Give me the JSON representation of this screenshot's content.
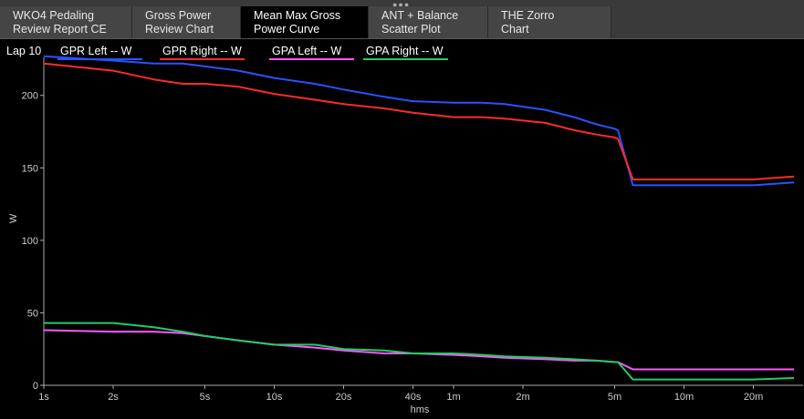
{
  "tabs": [
    {
      "line1": "WKO4 Pedaling",
      "line2": "Review Report CE",
      "active": false
    },
    {
      "line1": "Gross Power",
      "line2": "Review Chart",
      "active": false
    },
    {
      "line1": "Mean Max Gross",
      "line2": "Power Curve",
      "active": true
    },
    {
      "line1": "ANT + Balance",
      "line2": "Scatter Plot",
      "active": false
    },
    {
      "line1": "THE Zorro",
      "line2": "Chart",
      "active": false
    }
  ],
  "chart_data": {
    "type": "line",
    "lap_label": "Lap 10",
    "xlabel": "hms",
    "ylabel": "W",
    "x_scale": "log",
    "x_unit": "seconds",
    "xlim": [
      1,
      1800
    ],
    "ylim": [
      0,
      235
    ],
    "yticks": [
      0,
      50,
      100,
      150,
      200
    ],
    "xticks": [
      {
        "s": 1,
        "label": "1s"
      },
      {
        "s": 2,
        "label": "2s"
      },
      {
        "s": 5,
        "label": "5s"
      },
      {
        "s": 10,
        "label": "10s"
      },
      {
        "s": 20,
        "label": "20s"
      },
      {
        "s": 40,
        "label": "40s"
      },
      {
        "s": 60,
        "label": "1m"
      },
      {
        "s": 120,
        "label": "2m"
      },
      {
        "s": 300,
        "label": "5m"
      },
      {
        "s": 600,
        "label": "10m"
      },
      {
        "s": 1200,
        "label": "20m"
      }
    ],
    "series": [
      {
        "name": "GPR Left  -- W",
        "color": "#2a52ff",
        "points": [
          [
            1,
            227
          ],
          [
            2,
            224
          ],
          [
            3,
            222
          ],
          [
            4,
            222
          ],
          [
            5,
            220
          ],
          [
            7,
            217
          ],
          [
            10,
            212
          ],
          [
            15,
            208
          ],
          [
            20,
            204
          ],
          [
            30,
            199
          ],
          [
            40,
            196
          ],
          [
            60,
            195
          ],
          [
            80,
            195
          ],
          [
            100,
            194
          ],
          [
            150,
            190
          ],
          [
            200,
            185
          ],
          [
            250,
            180
          ],
          [
            300,
            177
          ],
          [
            310,
            176
          ],
          [
            360,
            138
          ],
          [
            1200,
            138
          ],
          [
            1800,
            140
          ]
        ]
      },
      {
        "name": "GPR Right  -- W",
        "color": "#ff2a2a",
        "points": [
          [
            1,
            222
          ],
          [
            2,
            217
          ],
          [
            3,
            211
          ],
          [
            4,
            208
          ],
          [
            5,
            208
          ],
          [
            7,
            206
          ],
          [
            10,
            201
          ],
          [
            15,
            197
          ],
          [
            20,
            194
          ],
          [
            30,
            191
          ],
          [
            40,
            188
          ],
          [
            60,
            185
          ],
          [
            80,
            185
          ],
          [
            100,
            184
          ],
          [
            150,
            181
          ],
          [
            200,
            176
          ],
          [
            250,
            173
          ],
          [
            300,
            171
          ],
          [
            310,
            170
          ],
          [
            360,
            142
          ],
          [
            1200,
            142
          ],
          [
            1800,
            144
          ]
        ]
      },
      {
        "name": "GPA Left  -- W",
        "color": "#ff55ff",
        "points": [
          [
            1,
            38
          ],
          [
            2,
            37
          ],
          [
            3,
            37
          ],
          [
            4,
            36
          ],
          [
            5,
            34
          ],
          [
            7,
            31
          ],
          [
            10,
            28
          ],
          [
            15,
            26
          ],
          [
            20,
            24
          ],
          [
            30,
            22
          ],
          [
            40,
            22
          ],
          [
            60,
            21
          ],
          [
            80,
            20
          ],
          [
            100,
            19
          ],
          [
            150,
            18
          ],
          [
            200,
            17
          ],
          [
            250,
            17
          ],
          [
            300,
            16
          ],
          [
            310,
            16
          ],
          [
            360,
            11
          ],
          [
            1200,
            11
          ],
          [
            1800,
            11
          ]
        ]
      },
      {
        "name": "GPA Right  -- W",
        "color": "#22cc66",
        "points": [
          [
            1,
            43
          ],
          [
            2,
            43
          ],
          [
            3,
            40
          ],
          [
            4,
            37
          ],
          [
            5,
            34
          ],
          [
            7,
            31
          ],
          [
            10,
            28
          ],
          [
            15,
            28
          ],
          [
            20,
            25
          ],
          [
            30,
            24
          ],
          [
            40,
            22
          ],
          [
            60,
            22
          ],
          [
            80,
            21
          ],
          [
            100,
            20
          ],
          [
            150,
            19
          ],
          [
            200,
            18
          ],
          [
            250,
            17
          ],
          [
            300,
            16
          ],
          [
            310,
            16
          ],
          [
            360,
            4
          ],
          [
            1200,
            4
          ],
          [
            1800,
            5
          ]
        ]
      }
    ]
  }
}
